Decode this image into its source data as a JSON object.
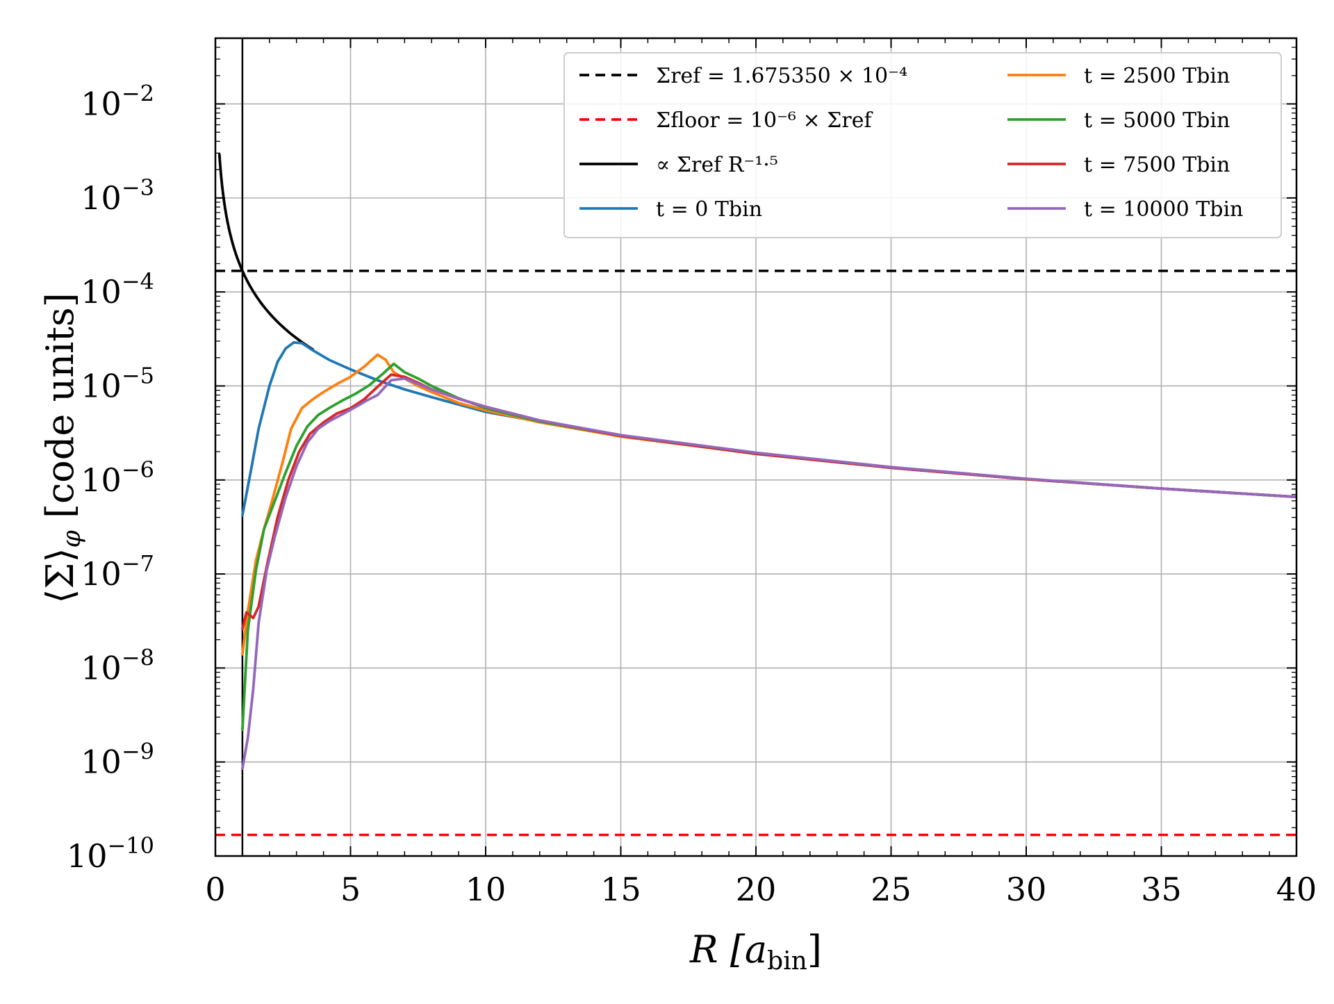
{
  "chart_data": {
    "type": "line",
    "title": "",
    "xlabel": "R [a_bin]",
    "ylabel": "⟨Σ⟩_φ  [code units]",
    "x_scale": "linear",
    "y_scale": "log",
    "xlim": [
      0,
      40
    ],
    "ylim": [
      1e-10,
      0.05
    ],
    "grid": true,
    "legend_position": "top-right",
    "x_ticks": [
      {
        "value": 0,
        "label": "0"
      },
      {
        "value": 5,
        "label": "5"
      },
      {
        "value": 10,
        "label": "10"
      },
      {
        "value": 15,
        "label": "15"
      },
      {
        "value": 20,
        "label": "20"
      },
      {
        "value": 25,
        "label": "25"
      },
      {
        "value": 30,
        "label": "30"
      },
      {
        "value": 35,
        "label": "35"
      },
      {
        "value": 40,
        "label": "40"
      }
    ],
    "y_ticks": [
      {
        "exp": -10,
        "label": "10",
        "sup": "−10"
      },
      {
        "exp": -9,
        "label": "10",
        "sup": "−9"
      },
      {
        "exp": -8,
        "label": "10",
        "sup": "−8"
      },
      {
        "exp": -7,
        "label": "10",
        "sup": "−7"
      },
      {
        "exp": -6,
        "label": "10",
        "sup": "−6"
      },
      {
        "exp": -5,
        "label": "10",
        "sup": "−5"
      },
      {
        "exp": -4,
        "label": "10",
        "sup": "−4"
      },
      {
        "exp": -3,
        "label": "10",
        "sup": "−3"
      },
      {
        "exp": -2,
        "label": "10",
        "sup": "−2"
      }
    ],
    "vertical_lines": [
      {
        "name": "inner-boundary",
        "x": 1.0,
        "color": "#000000"
      }
    ],
    "horizontal_lines": [
      {
        "name": "sigma-ref",
        "y": 0.000167535,
        "color": "#000000",
        "dash": true,
        "legend": "Σ_ref = 1.675350 × 10^−4"
      },
      {
        "name": "sigma-floor",
        "y": 1.67535e-10,
        "color": "#ff0000",
        "dash": true,
        "legend": "Σ_floor = 10^−6 × Σ_ref"
      }
    ],
    "series": [
      {
        "name": "power-law",
        "legend": "∝ Σ_ref R^−1.5",
        "color": "#000000",
        "kind": "powerlaw",
        "coefficient": 0.000167535,
        "exponent": -1.5,
        "x_range": [
          0.15,
          3.6
        ]
      },
      {
        "name": "t0",
        "legend": "t = 0 T_bin",
        "color": "#1f77b4",
        "x": [
          1.0,
          1.3,
          1.6,
          2.0,
          2.3,
          2.6,
          2.9,
          3.2,
          3.6,
          4.2,
          5.0,
          6.0,
          7.0,
          8.0,
          10.0,
          15.0,
          20.0,
          25.0,
          30.0,
          35.0,
          40.0
        ],
        "y": [
          4.2e-07,
          1.2e-06,
          3.5e-06,
          1e-05,
          1.8e-05,
          2.5e-05,
          2.9e-05,
          2.85e-05,
          2.4e-05,
          1.9e-05,
          1.5e-05,
          1.15e-05,
          9.2e-06,
          7.6e-06,
          5.3e-06,
          2.9e-06,
          1.9e-06,
          1.35e-06,
          1.02e-06,
          8.1e-07,
          6.6e-07
        ]
      },
      {
        "name": "t2500",
        "legend": "t = 2500 T_bin",
        "color": "#ff7f0e",
        "x": [
          1.0,
          1.2,
          1.5,
          1.8,
          2.1,
          2.5,
          2.8,
          3.2,
          3.6,
          4.0,
          4.5,
          5.0,
          5.5,
          6.0,
          6.3,
          6.6,
          7.0,
          7.5,
          8.0,
          9.0,
          10.0,
          12.0,
          15.0,
          20.0,
          25.0,
          30.0,
          35.0,
          40.0
        ],
        "y": [
          1.4e-08,
          4e-08,
          1.4e-07,
          3e-07,
          6e-07,
          1.6e-06,
          3.5e-06,
          5.8e-06,
          7.2e-06,
          8.6e-06,
          1.05e-05,
          1.25e-05,
          1.6e-05,
          2.15e-05,
          1.9e-05,
          1.4e-05,
          1.2e-05,
          1e-05,
          8.6e-06,
          6.6e-06,
          5.5e-06,
          4.1e-06,
          2.9e-06,
          1.9e-06,
          1.35e-06,
          1.02e-06,
          8.1e-07,
          6.6e-07
        ]
      },
      {
        "name": "t5000",
        "legend": "t = 5000 T_bin",
        "color": "#2ca02c",
        "x": [
          1.0,
          1.2,
          1.5,
          1.8,
          2.2,
          2.6,
          3.0,
          3.4,
          3.8,
          4.2,
          4.7,
          5.2,
          5.7,
          6.2,
          6.6,
          7.0,
          7.5,
          8.0,
          9.0,
          10.0,
          12.0,
          15.0,
          20.0,
          25.0,
          30.0,
          35.0,
          40.0
        ],
        "y": [
          2.2e-09,
          2.5e-08,
          1.1e-07,
          3e-07,
          6e-07,
          1.2e-06,
          2.3e-06,
          3.7e-06,
          4.9e-06,
          5.8e-06,
          7e-06,
          8.3e-06,
          1.02e-05,
          1.35e-05,
          1.72e-05,
          1.4e-05,
          1.2e-05,
          1e-05,
          7.4e-06,
          5.8e-06,
          4.2e-06,
          2.95e-06,
          1.9e-06,
          1.35e-06,
          1.02e-06,
          8.1e-07,
          6.6e-07
        ]
      },
      {
        "name": "t7500",
        "legend": "t = 7500 T_bin",
        "color": "#d62728",
        "x": [
          1.0,
          1.15,
          1.4,
          1.6,
          1.9,
          2.3,
          2.7,
          3.1,
          3.5,
          4.0,
          4.5,
          5.0,
          5.5,
          6.0,
          6.5,
          7.0,
          7.5,
          8.0,
          9.0,
          10.0,
          12.0,
          15.0,
          20.0,
          25.0,
          30.0,
          35.0,
          40.0
        ],
        "y": [
          2.6e-08,
          3.9e-08,
          3.4e-08,
          4.5e-08,
          1.2e-07,
          4e-07,
          1e-06,
          2e-06,
          3.1e-06,
          4.1e-06,
          5.1e-06,
          5.8e-06,
          7.2e-06,
          9.8e-06,
          1.32e-05,
          1.25e-05,
          1.08e-05,
          9.2e-06,
          7.3e-06,
          6e-06,
          4.3e-06,
          2.95e-06,
          1.9e-06,
          1.35e-06,
          1.02e-06,
          8.1e-07,
          6.6e-07
        ]
      },
      {
        "name": "t10000",
        "legend": "t = 10000 T_bin",
        "color": "#9467bd",
        "x": [
          1.0,
          1.2,
          1.4,
          1.6,
          1.9,
          2.2,
          2.6,
          3.0,
          3.4,
          3.8,
          4.2,
          4.7,
          5.2,
          5.6,
          6.0,
          6.5,
          7.0,
          7.5,
          8.0,
          9.0,
          10.0,
          12.0,
          15.0,
          20.0,
          25.0,
          30.0,
          35.0,
          40.0
        ],
        "y": [
          8.5e-10,
          1.8e-09,
          6e-09,
          3e-08,
          1.1e-07,
          2.5e-07,
          6.5e-07,
          1.4e-06,
          2.5e-06,
          3.5e-06,
          4.2e-06,
          5e-06,
          6e-06,
          7e-06,
          8e-06,
          1.15e-05,
          1.2e-05,
          1.05e-05,
          9.2e-06,
          7.3e-06,
          6e-06,
          4.3e-06,
          3e-06,
          1.95e-06,
          1.37e-06,
          1.03e-06,
          8.1e-07,
          6.6e-07
        ]
      }
    ],
    "legend_entries": [
      {
        "series": "sigma-ref",
        "dash": true,
        "color": "#000000",
        "label": "Σref = 1.675350 × 10⁻⁴"
      },
      {
        "series": "sigma-floor",
        "dash": true,
        "color": "#ff0000",
        "label": "Σfloor = 10⁻⁶ × Σref"
      },
      {
        "series": "power-law",
        "dash": false,
        "color": "#000000",
        "label": "∝ Σref R⁻¹·⁵"
      },
      {
        "series": "t0",
        "dash": false,
        "color": "#1f77b4",
        "label": "t = 0 Tbin"
      },
      {
        "series": "t2500",
        "dash": false,
        "color": "#ff7f0e",
        "label": "t = 2500 Tbin"
      },
      {
        "series": "t5000",
        "dash": false,
        "color": "#2ca02c",
        "label": "t = 5000 Tbin"
      },
      {
        "series": "t7500",
        "dash": false,
        "color": "#d62728",
        "label": "t = 7500 Tbin"
      },
      {
        "series": "t10000",
        "dash": false,
        "color": "#9467bd",
        "label": "t = 10000 Tbin"
      }
    ],
    "axis_label_parts": {
      "xlabel_main": "R [a",
      "xlabel_sub": "bin",
      "xlabel_close": "]",
      "ylabel_main": "⟨Σ⟩",
      "ylabel_sub": "φ",
      "ylabel_rest": "  [code units]"
    }
  }
}
